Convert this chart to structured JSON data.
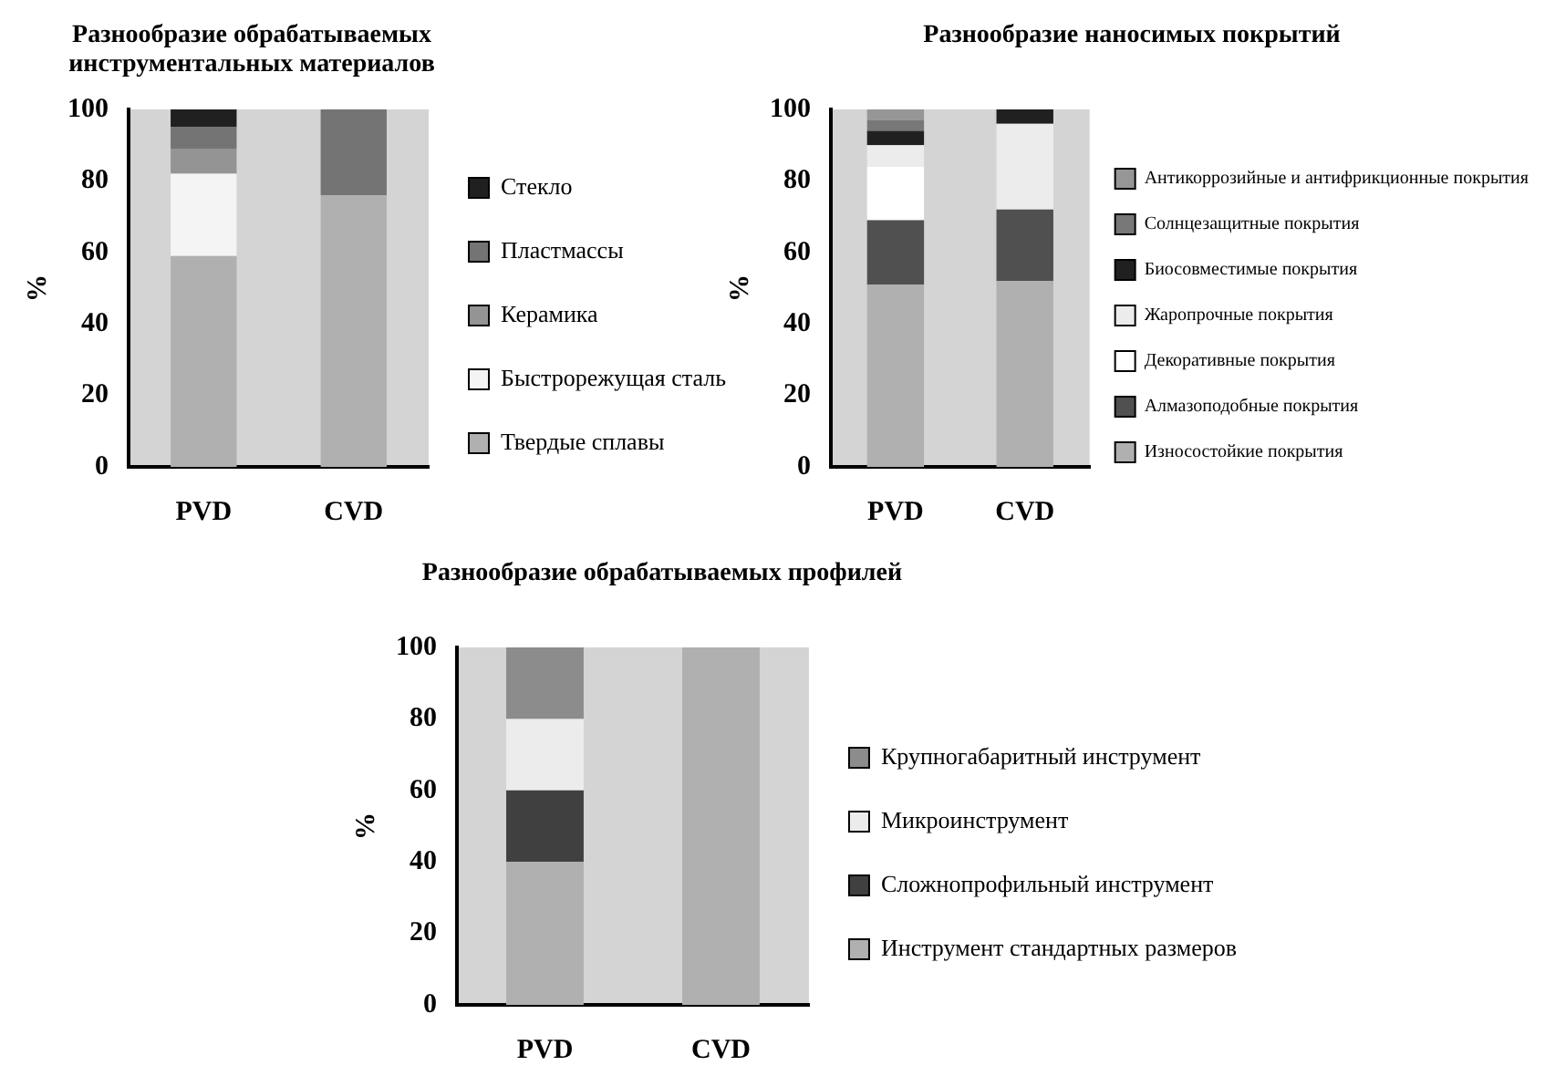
{
  "chart_data": [
    {
      "type": "bar",
      "title": "Разнообразие обрабатываемых инструментальных материалов",
      "ylabel": "%",
      "categories": [
        "PVD",
        "CVD"
      ],
      "stacked": true,
      "ylim": [
        0,
        100
      ],
      "yticks": [
        0,
        20,
        40,
        60,
        80,
        100
      ],
      "grid": false,
      "legend": "right",
      "series": [
        {
          "name": "Твердые сплавы",
          "color": "#b0b0b0",
          "values": [
            59,
            76
          ]
        },
        {
          "name": "Быстрорежущая сталь",
          "color": "#f4f4f4",
          "values": [
            23,
            0
          ]
        },
        {
          "name": "Керамика",
          "color": "#949494",
          "values": [
            7,
            0
          ]
        },
        {
          "name": "Пластмассы",
          "color": "#747474",
          "values": [
            6,
            24
          ]
        },
        {
          "name": "Стекло",
          "color": "#202020",
          "values": [
            5,
            0
          ]
        }
      ]
    },
    {
      "type": "bar",
      "title": "Разнообразие наносимых покрытий",
      "ylabel": "%",
      "categories": [
        "PVD",
        "CVD"
      ],
      "stacked": true,
      "ylim": [
        0,
        100
      ],
      "yticks": [
        0,
        20,
        40,
        60,
        80,
        100
      ],
      "grid": false,
      "legend": "right",
      "series": [
        {
          "name": "Износостойкие покрытия",
          "color": "#b0b0b0",
          "values": [
            51,
            52
          ]
        },
        {
          "name": "Алмазоподобные покрытия",
          "color": "#505050",
          "values": [
            18,
            20
          ]
        },
        {
          "name": "Декоративные покрытия",
          "color": "#ffffff",
          "values": [
            15,
            0
          ]
        },
        {
          "name": "Жаропрочные покрытия",
          "color": "#ececec",
          "values": [
            6,
            24
          ]
        },
        {
          "name": "Биосовместимые покрытия",
          "color": "#202020",
          "values": [
            4,
            4
          ]
        },
        {
          "name": "Солнцезащитные покрытия",
          "color": "#787878",
          "values": [
            3,
            0
          ]
        },
        {
          "name": "Антикоррозийные и антифрикционные покрытия",
          "color": "#969696",
          "values": [
            3,
            0
          ]
        }
      ]
    },
    {
      "type": "bar",
      "title": "Разнообразие обрабатываемых профилей",
      "ylabel": "%",
      "categories": [
        "PVD",
        "CVD"
      ],
      "stacked": true,
      "ylim": [
        0,
        100
      ],
      "yticks": [
        0,
        20,
        40,
        60,
        80,
        100
      ],
      "grid": false,
      "legend": "right",
      "series": [
        {
          "name": "Инструмент стандартных размеров",
          "color": "#b0b0b0",
          "values": [
            40,
            100
          ]
        },
        {
          "name": "Сложнопрофильный инструмент",
          "color": "#404040",
          "values": [
            20,
            0
          ]
        },
        {
          "name": "Микроинструмент",
          "color": "#ececec",
          "values": [
            20,
            0
          ]
        },
        {
          "name": "Крупногабаритный инструмент",
          "color": "#8c8c8c",
          "values": [
            20,
            0
          ]
        }
      ]
    }
  ]
}
